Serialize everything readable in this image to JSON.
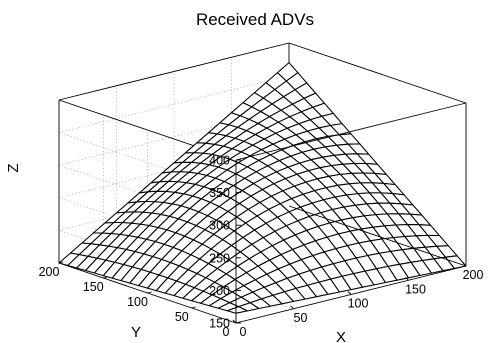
{
  "chart_data": {
    "type": "surface",
    "title": "Received ADVs",
    "xlabel": "X",
    "ylabel": "Y",
    "zlabel": "Z",
    "xlim": [
      0,
      200
    ],
    "ylim": [
      0,
      200
    ],
    "zlim": [
      150,
      400
    ],
    "xticks": [
      "0",
      "50",
      "100",
      "150",
      "200"
    ],
    "yticks": [
      "0",
      "50",
      "100",
      "150",
      "200"
    ],
    "zticks": [
      "150",
      "200",
      "250",
      "300",
      "350",
      "400"
    ],
    "grid": true,
    "mesh_divisions": 20,
    "surface": {
      "peak": {
        "x": 200,
        "y": 200,
        "z": 370
      },
      "corner_values": [
        {
          "x": 0,
          "y": 0,
          "z": 165
        },
        {
          "x": 200,
          "y": 0,
          "z": 150
        },
        {
          "x": 0,
          "y": 200,
          "z": 150
        },
        {
          "x": 200,
          "y": 200,
          "z": 370
        }
      ],
      "z_at_x100_y100": 265
    }
  }
}
